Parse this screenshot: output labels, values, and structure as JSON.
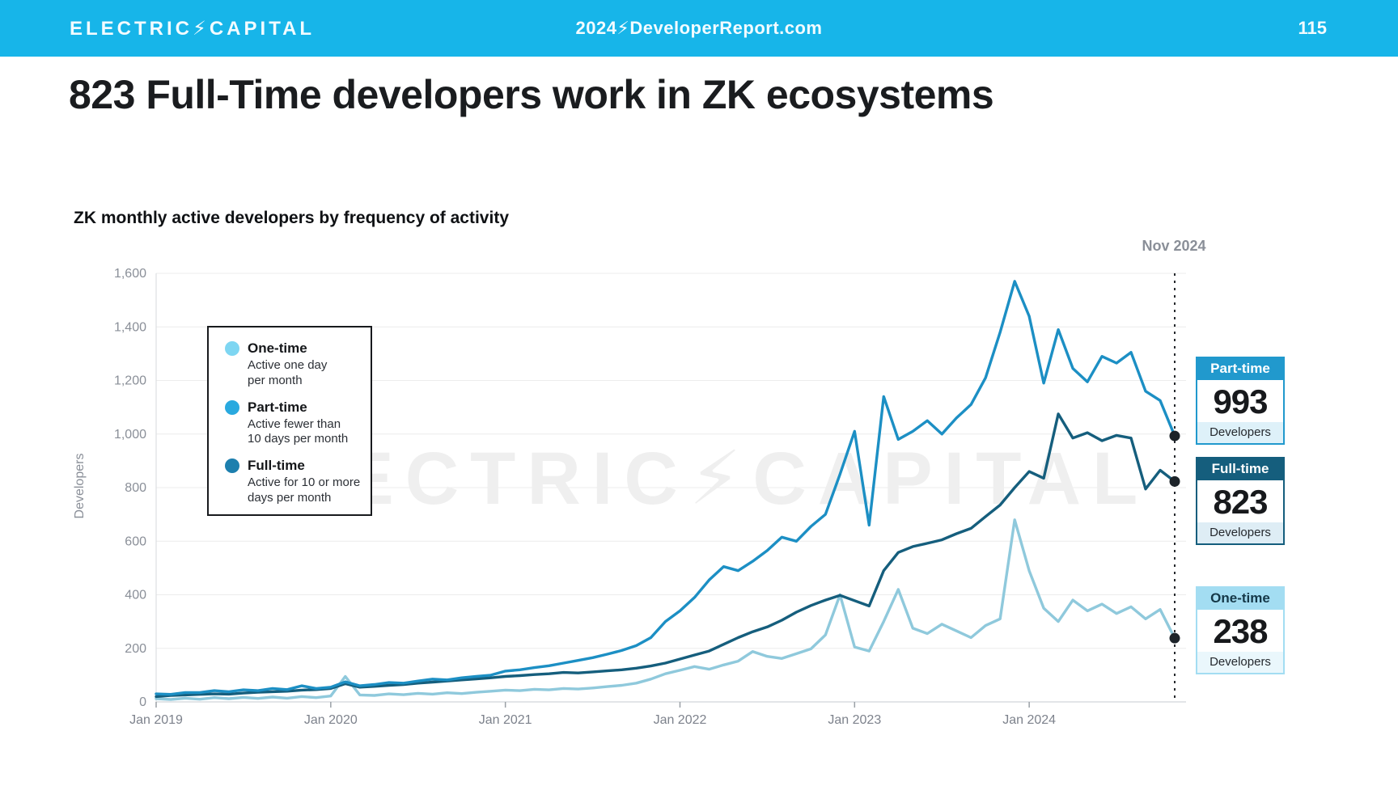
{
  "header": {
    "logo": "ELECTRIC⚡CAPITAL",
    "site": "2024⚡DeveloperReport.com",
    "page_number": "115",
    "bg_color": "#17B5E9"
  },
  "title": "823 Full-Time developers work in ZK ecosystems",
  "chart": {
    "legend": [
      {
        "name": "One-time",
        "desc1": "Active one day",
        "desc2": "per month",
        "color": "#7ED6F2"
      },
      {
        "name": "Part-time",
        "desc1": "Active fewer than",
        "desc2": "10 days per month",
        "color": "#29A9DF"
      },
      {
        "name": "Full-time",
        "desc1": "Active for 10 or more",
        "desc2": "days per month",
        "color": "#1C7FAE"
      }
    ],
    "badges": [
      {
        "label": "Part-time",
        "value": "993",
        "unit": "Developers",
        "border_color": "#2199CD",
        "header_bg": "#2199CD",
        "header_text": "#ffffff",
        "footer_bg": "#DEF1F9"
      },
      {
        "label": "Full-time",
        "value": "823",
        "unit": "Developers",
        "border_color": "#155E7D",
        "header_bg": "#155E7D",
        "header_text": "#ffffff",
        "footer_bg": "#DEEDF5"
      },
      {
        "label": "One-time",
        "value": "238",
        "unit": "Developers",
        "border_color": "#A3DDF2",
        "header_bg": "#A3DDF2",
        "header_text": "#153848",
        "footer_bg": "#EAF7FC"
      }
    ]
  },
  "chart_data": {
    "type": "line",
    "title": "ZK monthly active developers by frequency of activity",
    "xlabel": "",
    "ylabel": "Developers",
    "ylim": [
      0,
      1600
    ],
    "yticks": [
      0,
      200,
      400,
      600,
      800,
      1000,
      1200,
      1400,
      1600
    ],
    "ytick_labels": [
      "0",
      "200",
      "400",
      "600",
      "800",
      "1,000",
      "1,200",
      "1,400",
      "1,600"
    ],
    "grid": true,
    "legend_position": "top-left inside plot",
    "x_unit": "month",
    "x_range": [
      "Jan 2019",
      "Nov 2024"
    ],
    "xticks": [
      {
        "i": 0,
        "label": "Jan 2019"
      },
      {
        "i": 12,
        "label": "Jan 2020"
      },
      {
        "i": 24,
        "label": "Jan 2021"
      },
      {
        "i": 36,
        "label": "Jan 2022"
      },
      {
        "i": 48,
        "label": "Jan 2023"
      },
      {
        "i": 60,
        "label": "Jan 2024"
      }
    ],
    "annotation": {
      "label": "Nov 2024",
      "x_index": 70
    },
    "watermark": "ELECTRIC⚡CAPITAL",
    "endpoints": {
      "Part-time": 993,
      "Full-time": 823,
      "One-time": 238
    },
    "series": [
      {
        "name": "One-time",
        "color": "#8FC9DC",
        "values": [
          12,
          9,
          14,
          10,
          16,
          12,
          17,
          13,
          18,
          14,
          20,
          16,
          22,
          95,
          26,
          24,
          30,
          27,
          32,
          29,
          34,
          31,
          36,
          40,
          44,
          42,
          47,
          45,
          50,
          48,
          52,
          57,
          62,
          70,
          85,
          105,
          118,
          132,
          122,
          138,
          152,
          188,
          170,
          162,
          180,
          198,
          250,
          400,
          205,
          190,
          300,
          420,
          275,
          255,
          290,
          265,
          240,
          285,
          310,
          680,
          490,
          350,
          300,
          380,
          340,
          365,
          330,
          355,
          310,
          345,
          238
        ]
      },
      {
        "name": "Full-time",
        "color": "#155E7D",
        "values": [
          20,
          24,
          26,
          28,
          30,
          29,
          33,
          36,
          38,
          40,
          44,
          46,
          50,
          68,
          55,
          58,
          62,
          65,
          70,
          74,
          78,
          82,
          86,
          90,
          95,
          98,
          102,
          105,
          110,
          108,
          112,
          116,
          120,
          126,
          134,
          145,
          160,
          175,
          190,
          215,
          240,
          262,
          280,
          305,
          335,
          360,
          380,
          398,
          378,
          358,
          490,
          558,
          580,
          592,
          605,
          628,
          648,
          692,
          735,
          800,
          860,
          835,
          1075,
          985,
          1005,
          975,
          995,
          985,
          795,
          865,
          823
        ]
      },
      {
        "name": "Part-time",
        "color": "#1C8FC4",
        "values": [
          30,
          28,
          35,
          35,
          42,
          38,
          45,
          42,
          50,
          46,
          60,
          50,
          55,
          75,
          60,
          65,
          72,
          70,
          78,
          85,
          82,
          90,
          95,
          100,
          115,
          120,
          128,
          135,
          145,
          155,
          165,
          178,
          192,
          210,
          240,
          300,
          340,
          390,
          455,
          505,
          490,
          525,
          565,
          615,
          600,
          655,
          700,
          850,
          1010,
          660,
          1140,
          980,
          1010,
          1050,
          1000,
          1060,
          1110,
          1210,
          1380,
          1570,
          1440,
          1190,
          1390,
          1245,
          1195,
          1290,
          1265,
          1305,
          1160,
          1125,
          993
        ]
      }
    ]
  }
}
